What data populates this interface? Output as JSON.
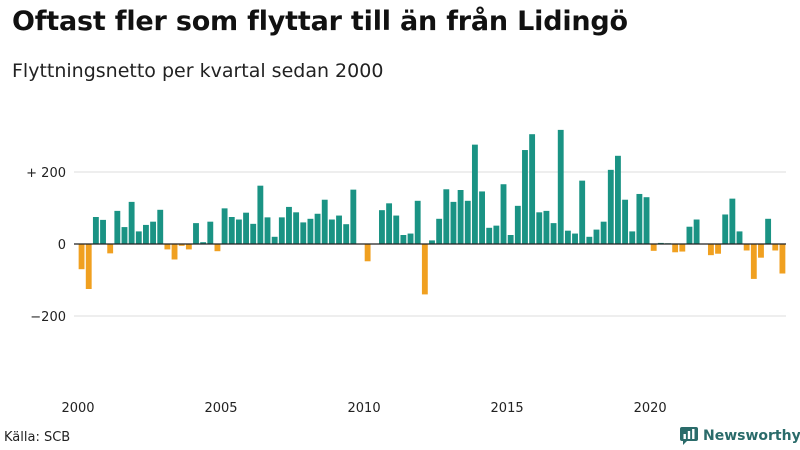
{
  "title": "Oftast fler som flyttar till än från Lidingö",
  "subtitle": "Flyttningsnetto per kvartal sedan 2000",
  "source": "Källa: SCB",
  "brand": "Newsworthy",
  "colors": {
    "positive": "#1a9384",
    "negative": "#f0a020",
    "brand": "#2a6b6a"
  },
  "brand_icon": "newsworthy-chart-icon",
  "chart_data": {
    "type": "bar",
    "title": "Oftast fler som flyttar till än från Lidingö",
    "subtitle": "Flyttningsnetto per kvartal sedan 2000",
    "ylim": [
      -350,
      350
    ],
    "yticks": [
      200,
      0,
      -200
    ],
    "ytick_labels": [
      "+ 200",
      "0",
      "−200"
    ],
    "xticks": [
      2000,
      2005,
      2010,
      2015,
      2020
    ],
    "xtick_labels": [
      "2000",
      "2005",
      "2010",
      "2015",
      "2020"
    ],
    "start_year": 2000,
    "grid": "horizontal",
    "values": [
      -70,
      -125,
      75,
      67,
      -26,
      92,
      47,
      117,
      35,
      53,
      62,
      95,
      -15,
      -43,
      -5,
      -15,
      58,
      5,
      62,
      -20,
      99,
      75,
      68,
      87,
      56,
      162,
      74,
      20,
      74,
      103,
      88,
      60,
      70,
      84,
      123,
      68,
      79,
      55,
      151,
      0,
      -48,
      0,
      94,
      113,
      79,
      25,
      29,
      120,
      -140,
      10,
      70,
      152,
      117,
      150,
      120,
      276,
      146,
      45,
      51,
      166,
      25,
      106,
      261,
      305,
      88,
      92,
      58,
      317,
      37,
      29,
      176,
      20,
      40,
      62,
      206,
      245,
      123,
      35,
      139,
      130,
      -19,
      3,
      2,
      -23,
      -21,
      48,
      68,
      0,
      -31,
      -27,
      82,
      126,
      35,
      -18,
      -97,
      -38,
      70,
      -18,
      -82
    ]
  }
}
